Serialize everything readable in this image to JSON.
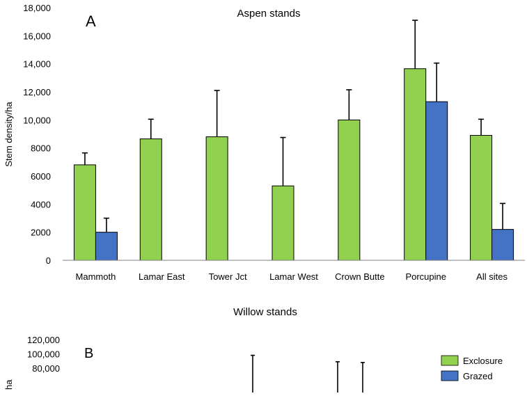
{
  "chart_data": [
    {
      "type": "bar",
      "panel_label": "A",
      "title": "Aspen stands",
      "xlabel": "",
      "ylabel": "Stem density/ha",
      "ylim": [
        0,
        18000
      ],
      "yticks": [
        "0",
        "2000",
        "4000",
        "6000",
        "8000",
        "10,000",
        "12,000",
        "14,000",
        "16,000",
        "18,000"
      ],
      "ytick_values": [
        0,
        2000,
        4000,
        6000,
        8000,
        10000,
        12000,
        14000,
        16000,
        18000
      ],
      "categories": [
        "Mammoth",
        "Lamar East",
        "Tower Jct",
        "Lamar West",
        "Crown Butte",
        "Porcupine",
        "All sites"
      ],
      "series": [
        {
          "name": "Exclosure",
          "color": "#92d050",
          "values": [
            6800,
            8650,
            8800,
            5300,
            10000,
            13650,
            8900
          ],
          "error": [
            850,
            1400,
            3300,
            3450,
            2150,
            3450,
            1150
          ]
        },
        {
          "name": "Grazed",
          "color": "#4472c4",
          "values": [
            2000,
            null,
            null,
            null,
            null,
            11300,
            2200
          ],
          "error": [
            1000,
            null,
            null,
            null,
            null,
            2750,
            1850
          ]
        }
      ],
      "grid": false,
      "legend": "none"
    },
    {
      "type": "bar",
      "panel_label": "B",
      "title": "Willow stands",
      "ylabel_partial": "ha",
      "ylim": [
        0,
        120000
      ],
      "yticks": [
        "100,000",
        "120,000"
      ],
      "ytick_values": [
        100000,
        120000
      ],
      "visible_error_tops": [
        98000,
        89000,
        88000
      ],
      "series": [
        {
          "name": "Exclosure",
          "color": "#92d050"
        },
        {
          "name": "Grazed",
          "color": "#4472c4"
        }
      ],
      "legend": "top-right",
      "cropped": true
    }
  ]
}
